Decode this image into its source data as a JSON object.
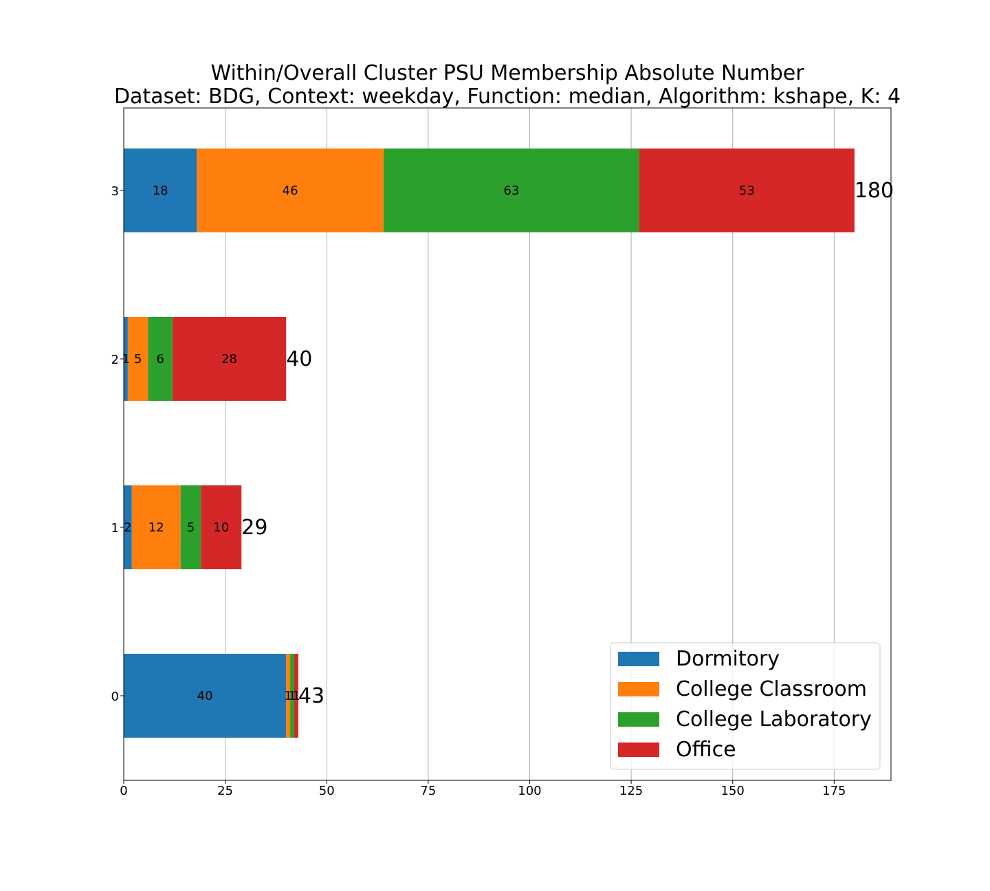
{
  "chart_data": {
    "type": "bar",
    "orientation": "horizontal",
    "stacked": true,
    "title": "Within/Overall Cluster PSU Membership Absolute Number",
    "subtitle": "Dataset: BDG, Context: weekday, Function: median, Algorithm: kshape, K: 4",
    "xlabel": "",
    "ylabel": "",
    "xlim": [
      0,
      189
    ],
    "xticks": [
      0,
      25,
      50,
      75,
      100,
      125,
      150,
      175
    ],
    "grid": "vertical",
    "legend_position": "bottom-right",
    "categories": [
      "0",
      "1",
      "2",
      "3"
    ],
    "series": [
      {
        "name": "Dormitory",
        "color": "#1f77b4",
        "values": [
          40,
          2,
          1,
          18
        ]
      },
      {
        "name": "College Classroom",
        "color": "#ff7f0e",
        "values": [
          1,
          12,
          5,
          46
        ]
      },
      {
        "name": "College Laboratory",
        "color": "#2ca02c",
        "values": [
          1,
          5,
          6,
          63
        ]
      },
      {
        "name": "Office",
        "color": "#d62728",
        "values": [
          1,
          10,
          28,
          53
        ]
      }
    ],
    "totals": [
      43,
      29,
      40,
      180
    ]
  }
}
